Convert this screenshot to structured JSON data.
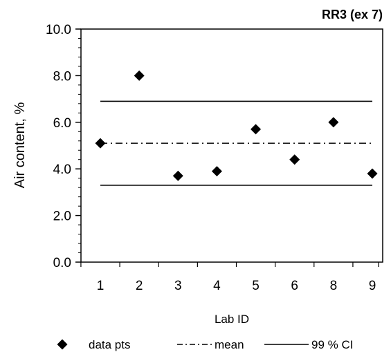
{
  "chart_data": {
    "type": "scatter",
    "title": "RR3 (ex 7)",
    "xlabel": "Lab ID",
    "ylabel": "Air content, %",
    "categories": [
      "1",
      "2",
      "3",
      "4",
      "5",
      "6",
      "8",
      "9"
    ],
    "ylim": [
      0,
      10
    ],
    "yticks": [
      "0.0",
      "2.0",
      "4.0",
      "6.0",
      "8.0",
      "10.0"
    ],
    "grid": false,
    "legend_position": "bottom",
    "series": [
      {
        "name": "data pts",
        "values": [
          5.1,
          8.0,
          3.7,
          3.9,
          5.7,
          4.4,
          6.0,
          3.8
        ],
        "marker": "diamond",
        "color": "#000000"
      }
    ],
    "reference_lines": [
      {
        "name": "mean",
        "value": 5.1,
        "style": "dash-dot",
        "color": "#000000"
      },
      {
        "name": "99 % CI",
        "value": 6.9,
        "style": "solid",
        "color": "#000000"
      },
      {
        "name": "99 % CI",
        "value": 3.3,
        "style": "solid",
        "color": "#000000"
      }
    ],
    "legend": [
      "data pts",
      "mean",
      "99 % CI"
    ]
  }
}
